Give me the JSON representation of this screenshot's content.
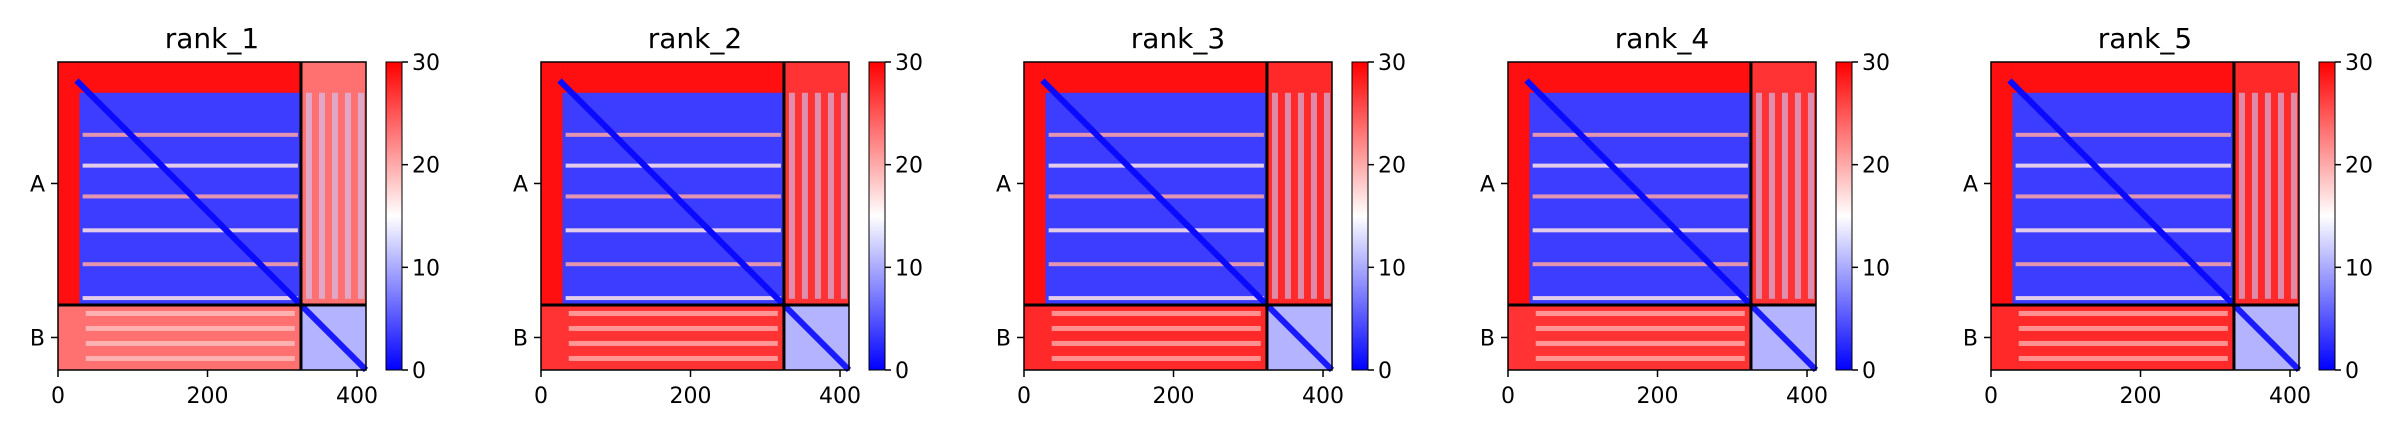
{
  "chart_data": {
    "type": "heatmap",
    "colormap": {
      "name": "bwr",
      "low": "#0000ff",
      "mid": "#ffffff",
      "high": "#ff0000"
    },
    "colorbar": {
      "vmin": 0,
      "vmax": 30,
      "ticks": [
        "0",
        "10",
        "20",
        "30"
      ]
    },
    "x_ticks": [
      {
        "value": 0,
        "label": "0"
      },
      {
        "value": 200,
        "label": "200"
      },
      {
        "value": 400,
        "label": "400"
      }
    ],
    "xlim": [
      0,
      412
    ],
    "ylim": [
      412,
      0
    ],
    "chains": [
      {
        "label": "A",
        "start": 0,
        "end": 325
      },
      {
        "label": "B",
        "start": 325,
        "end": 412
      }
    ],
    "chain_boundary": 325,
    "panels": [
      {
        "title": "rank_1",
        "inter_chain_level": 0.78
      },
      {
        "title": "rank_2",
        "inter_chain_level": 0.9
      },
      {
        "title": "rank_3",
        "inter_chain_level": 0.92
      },
      {
        "title": "rank_4",
        "inter_chain_level": 0.9
      },
      {
        "title": "rank_5",
        "inter_chain_level": 0.92
      }
    ]
  }
}
